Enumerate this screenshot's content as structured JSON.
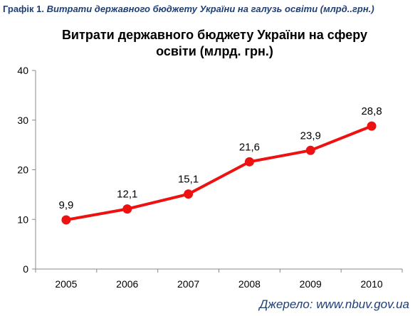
{
  "caption": {
    "label": "Графік 1.",
    "text": "Витрати державного бюджету України на галузь освіти (млрд..грн.)"
  },
  "chart_data": {
    "type": "line",
    "title_line1": "Витрати державного бюджету України на сферу",
    "title_line2": "освіти (млрд. грн.)",
    "categories": [
      "2005",
      "2006",
      "2007",
      "2008",
      "2009",
      "2010"
    ],
    "series": [
      {
        "values": [
          9.9,
          12.1,
          15.1,
          21.6,
          23.9,
          28.8
        ],
        "labels": [
          "9,9",
          "12,1",
          "15,1",
          "21,6",
          "23,9",
          "28,8"
        ],
        "color": "#ee1111"
      }
    ],
    "ylim": [
      0,
      40
    ],
    "yticks": [
      0,
      10,
      20,
      30,
      40
    ],
    "xlabel": "",
    "ylabel": "",
    "grid": false,
    "legend": "none"
  },
  "source": "Джерело: www.nbuv.gov.ua"
}
